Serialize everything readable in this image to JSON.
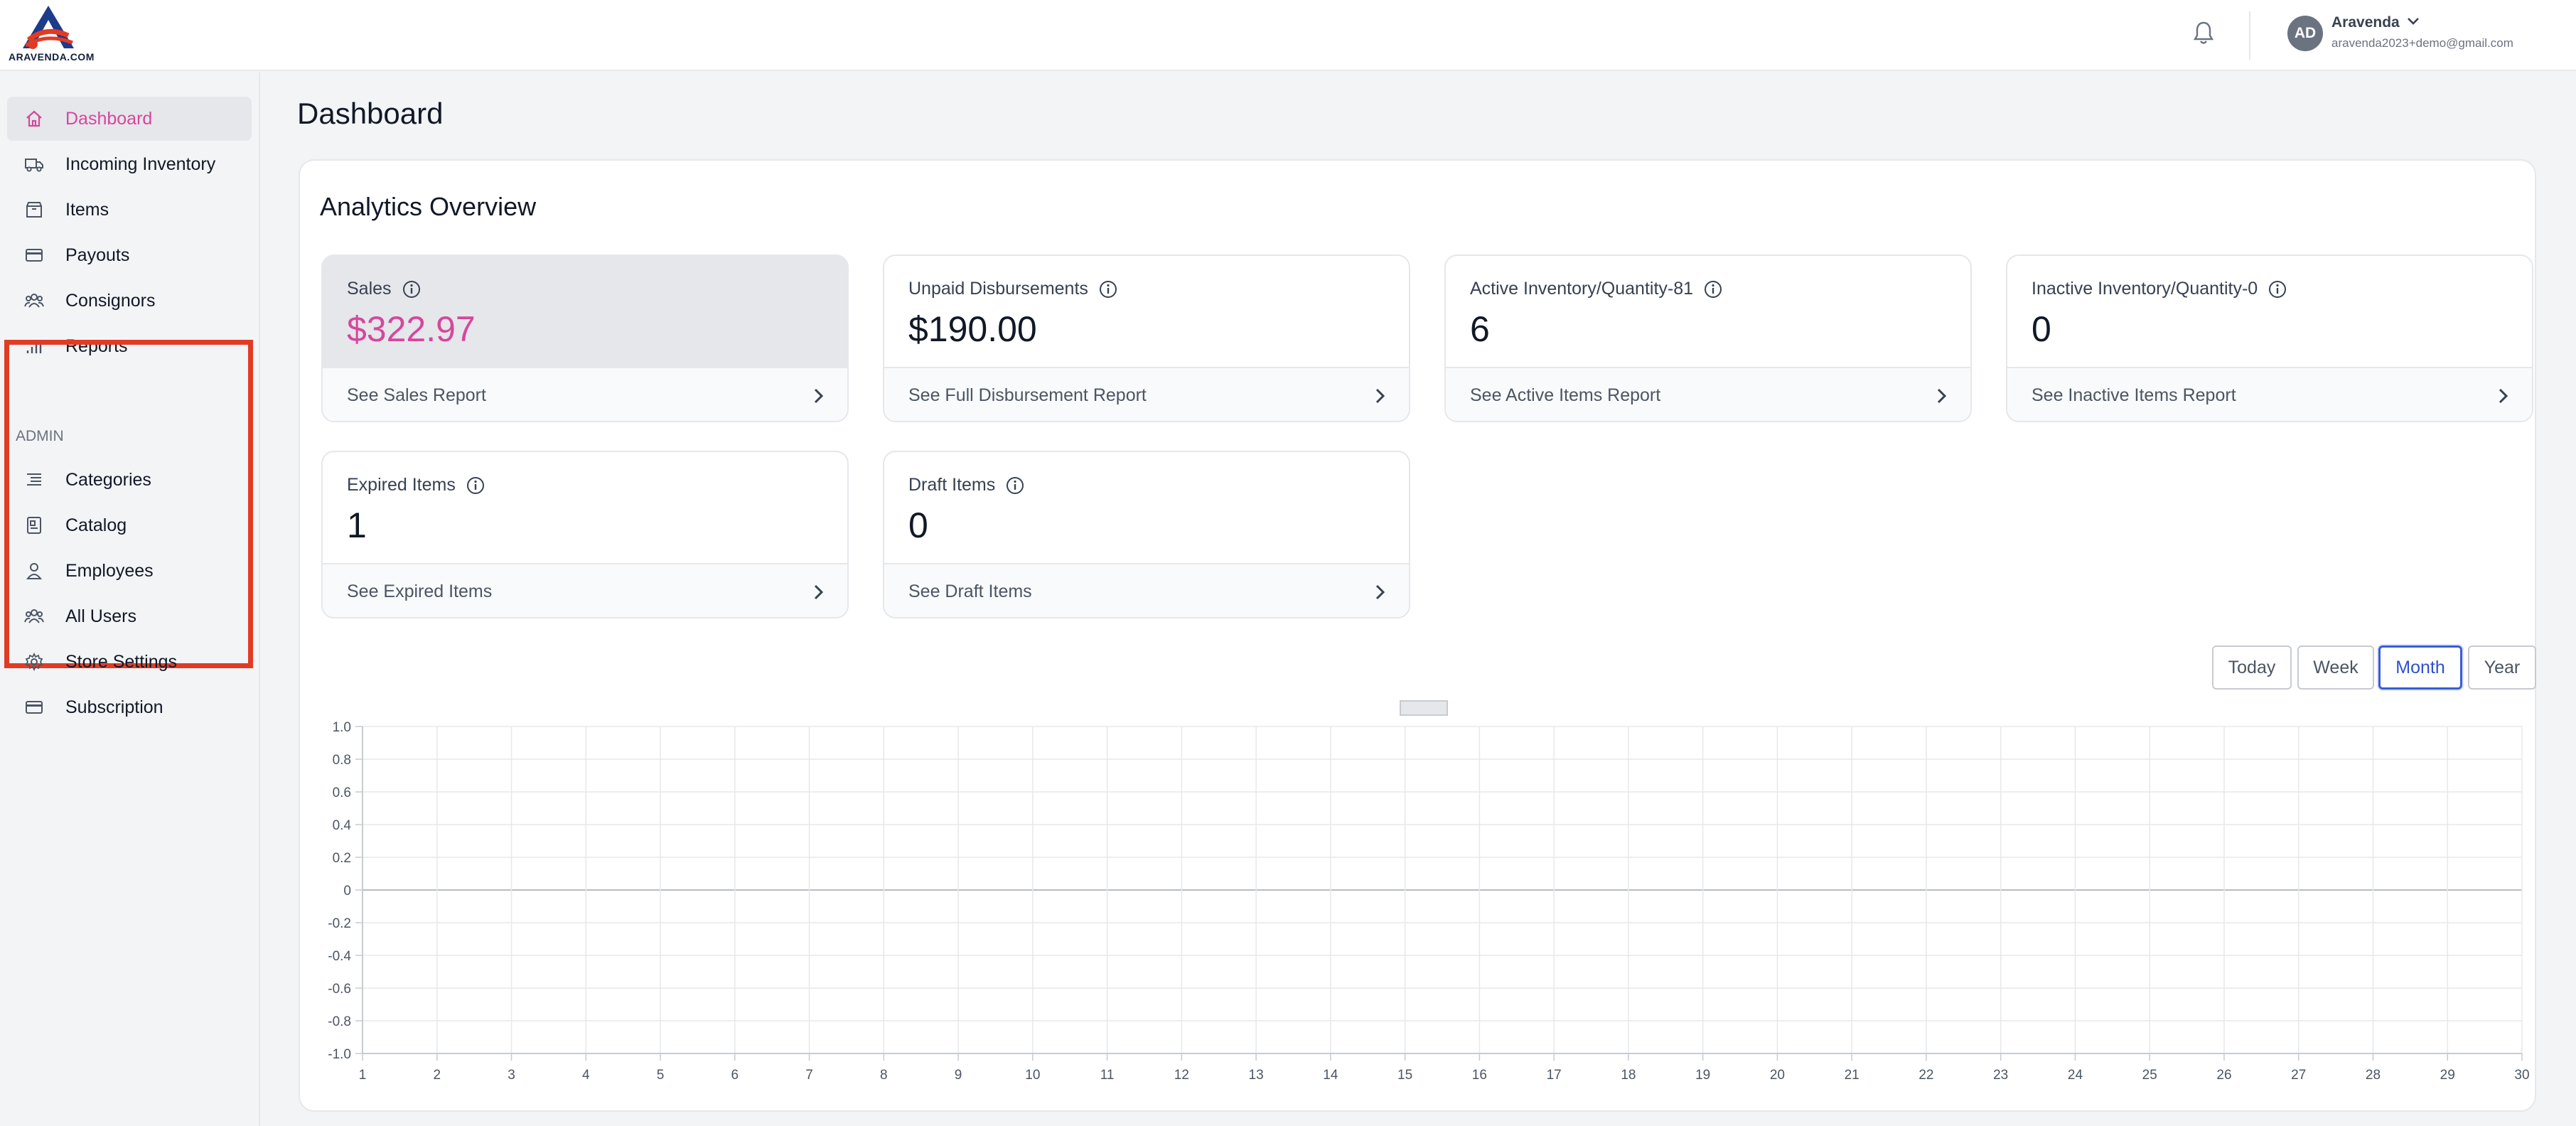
{
  "header": {
    "logo_text": "ARAVENDA.COM",
    "user_initials": "AD",
    "user_name": "Aravenda",
    "user_email": "aravenda2023+demo@gmail.com"
  },
  "sidebar": {
    "items": [
      {
        "label": "Dashboard",
        "icon": "home-icon",
        "active": true
      },
      {
        "label": "Incoming Inventory",
        "icon": "truck-icon"
      },
      {
        "label": "Items",
        "icon": "box-icon"
      },
      {
        "label": "Payouts",
        "icon": "credit-card-icon"
      },
      {
        "label": "Consignors",
        "icon": "users-icon"
      },
      {
        "label": "Reports",
        "icon": "bar-chart-icon"
      }
    ],
    "admin_title": "ADMIN",
    "admin_items": [
      {
        "label": "Categories",
        "icon": "list-icon"
      },
      {
        "label": "Catalog",
        "icon": "catalog-icon"
      },
      {
        "label": "Employees",
        "icon": "user-icon"
      },
      {
        "label": "All Users",
        "icon": "users-icon"
      },
      {
        "label": "Store Settings",
        "icon": "gear-icon"
      },
      {
        "label": "Subscription",
        "icon": "credit-card-icon"
      }
    ]
  },
  "main": {
    "page_title": "Dashboard",
    "panel_title": "Analytics Overview",
    "cards": [
      {
        "label": "Sales",
        "value": "$322.97",
        "link": "See Sales Report"
      },
      {
        "label": "Unpaid Disbursements",
        "value": "$190.00",
        "link": "See Full Disbursement Report"
      },
      {
        "label": "Active Inventory/Quantity-81",
        "value": "6",
        "link": "See Active Items Report"
      },
      {
        "label": "Inactive Inventory/Quantity-0",
        "value": "0",
        "link": "See Inactive Items Report"
      },
      {
        "label": "Expired Items",
        "value": "1",
        "link": "See Expired Items"
      },
      {
        "label": "Draft Items",
        "value": "0",
        "link": "See Draft Items"
      }
    ],
    "range_buttons": [
      "Today",
      "Week",
      "Month",
      "Year"
    ],
    "range_selected": "Month"
  },
  "colors": {
    "accent_pink": "#d6479c",
    "selected_blue": "#3b5bd9",
    "admin_highlight": "#e23b24"
  },
  "chart_data": {
    "type": "line",
    "title": "",
    "xlabel": "",
    "ylabel": "",
    "x": [
      1,
      2,
      3,
      4,
      5,
      6,
      7,
      8,
      9,
      10,
      11,
      12,
      13,
      14,
      15,
      16,
      17,
      18,
      19,
      20,
      21,
      22,
      23,
      24,
      25,
      26,
      27,
      28,
      29,
      30
    ],
    "y_ticks": [
      "1.0",
      "0.8",
      "0.6",
      "0.4",
      "0.2",
      "0",
      "-0.2",
      "-0.4",
      "-0.6",
      "-0.8",
      "-1.0"
    ],
    "ylim": [
      -1.0,
      1.0
    ],
    "xlim": [
      1,
      30
    ],
    "series": [],
    "grid": true,
    "legend": "top-center"
  }
}
